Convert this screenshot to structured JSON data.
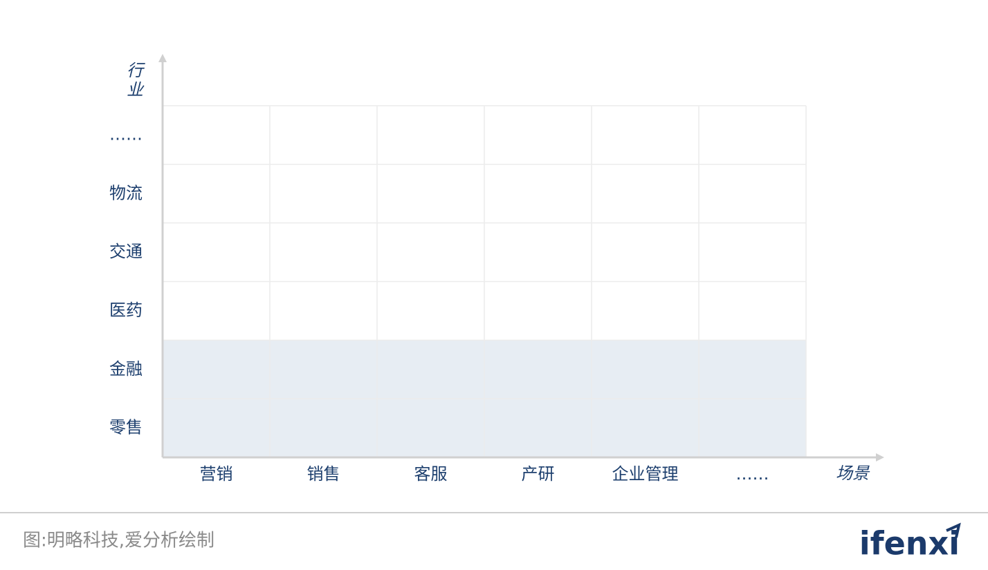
{
  "diagram": {
    "y_title": "行业",
    "x_title": "场景",
    "rows": [
      {
        "label": "……",
        "highlighted": false
      },
      {
        "label": "物流",
        "highlighted": false
      },
      {
        "label": "交通",
        "highlighted": false
      },
      {
        "label": "医药",
        "highlighted": false
      },
      {
        "label": "金融",
        "highlighted": true
      },
      {
        "label": "零售",
        "highlighted": true
      }
    ],
    "columns": [
      "营销",
      "销售",
      "客服",
      "产研",
      "企业管理",
      "……"
    ]
  },
  "footer": {
    "caption": "图:明略科技,爱分析绘制",
    "logo": "ifenxi"
  }
}
